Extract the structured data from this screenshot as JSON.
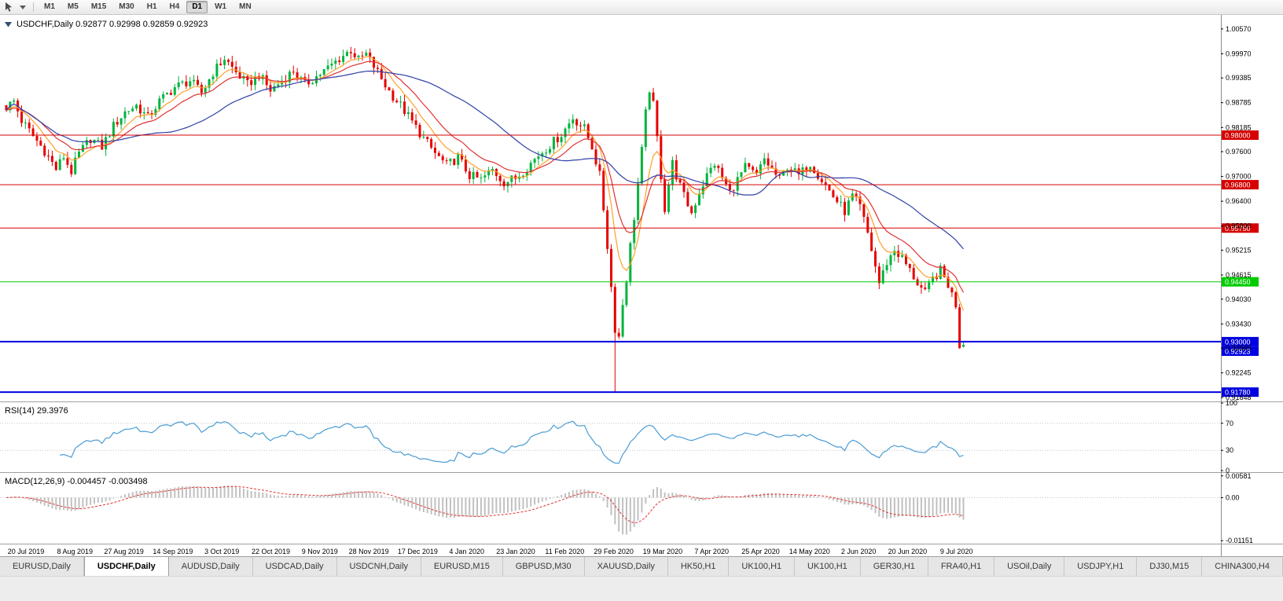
{
  "toolbar": {
    "timeframes": [
      "M1",
      "M5",
      "M15",
      "M30",
      "H1",
      "H4",
      "D1",
      "W1",
      "MN"
    ],
    "active_timeframe": "D1"
  },
  "chart": {
    "header": "USDCHF,Daily 0.92877 0.92998 0.92859 0.92923",
    "symbol": "USDCHF",
    "period": "Daily",
    "open": "0.92877",
    "high": "0.92998",
    "low": "0.92859",
    "close": "0.92923"
  },
  "indicators": {
    "rsi": {
      "label": "RSI(14) 29.3976",
      "levels": [
        "100",
        "70",
        "30",
        "0"
      ],
      "line_color": "#4A9CD4"
    },
    "macd": {
      "label": "MACD(12,26,9) -0.004457 -0.003498",
      "axis_labels": [
        "0.00581",
        "0.00",
        "-0.01151"
      ],
      "bar_color": "#C0C0C0",
      "signal_color": "#E03232"
    }
  },
  "price_axis": {
    "ticks": [
      "1.00570",
      "0.99970",
      "0.99385",
      "0.98785",
      "0.98185",
      "0.97600",
      "0.97000",
      "0.96400",
      "0.95800",
      "0.95215",
      "0.94615",
      "0.94030",
      "0.93430",
      "0.92845",
      "0.92245",
      "0.91648"
    ]
  },
  "levels": [
    {
      "value": 0.98,
      "label": "0.98000",
      "color": "#D40000",
      "width": 1
    },
    {
      "value": 0.968,
      "label": "0.96800",
      "color": "#D40000",
      "width": 1
    },
    {
      "value": 0.9575,
      "label": "0.95750",
      "color": "#D40000",
      "width": 1
    },
    {
      "value": 0.9445,
      "label": "0.94450",
      "color": "#00CC00",
      "width": 1
    },
    {
      "value": 0.93,
      "label": "0.93000",
      "color": "#0000E0",
      "width": 2
    },
    {
      "value": 0.9178,
      "label": "0.91780",
      "color": "#0000E0",
      "width": 2
    }
  ],
  "current_price": {
    "value": 0.92923,
    "label": "0.92923",
    "color": "#0000E0"
  },
  "date_axis": [
    "20 Jul 2019",
    "8 Aug 2019",
    "27 Aug 2019",
    "14 Sep 2019",
    "3 Oct 2019",
    "22 Oct 2019",
    "9 Nov 2019",
    "28 Nov 2019",
    "17 Dec 2019",
    "4 Jan 2020",
    "23 Jan 2020",
    "11 Feb 2020",
    "29 Feb 2020",
    "19 Mar 2020",
    "7 Apr 2020",
    "25 Apr 2020",
    "14 May 2020",
    "2 Jun 2020",
    "20 Jun 2020",
    "9 Jul 2020"
  ],
  "tabs": {
    "active_index": 1,
    "items": [
      "EURUSD,Daily",
      "USDCHF,Daily",
      "AUDUSD,Daily",
      "USDCAD,Daily",
      "USDCNH,Daily",
      "EURUSD,M15",
      "GBPUSD,M30",
      "XAUUSD,Daily",
      "HK50,H1",
      "UK100,H1",
      "UK100,H1",
      "GER30,H1",
      "FRA40,H1",
      "USOil,Daily",
      "USDJPY,H1",
      "DJ30,M15",
      "CHINA300,H4"
    ]
  },
  "chart_data": {
    "type": "candlestick",
    "title": "USDCHF Daily",
    "num_candles": 251,
    "candle_spacing": 4.87,
    "y_range": [
      0.91591,
      1.00872
    ],
    "macd_range": [
      -0.0121,
      0.00639
    ],
    "last_close": 0.92923,
    "last_open": 0.92877,
    "price_keypoints": [
      [
        0,
        0.9868
      ],
      [
        2,
        0.9882
      ],
      [
        4,
        0.9835
      ],
      [
        7,
        0.9798
      ],
      [
        10,
        0.9762
      ],
      [
        13,
        0.9718
      ],
      [
        15,
        0.9748
      ],
      [
        17,
        0.9712
      ],
      [
        19,
        0.9755
      ],
      [
        22,
        0.9792
      ],
      [
        25,
        0.9772
      ],
      [
        28,
        0.9822
      ],
      [
        31,
        0.9856
      ],
      [
        34,
        0.9872
      ],
      [
        37,
        0.9842
      ],
      [
        40,
        0.9882
      ],
      [
        44,
        0.9916
      ],
      [
        48,
        0.9932
      ],
      [
        51,
        0.9902
      ],
      [
        54,
        0.9952
      ],
      [
        57,
        0.9986
      ],
      [
        60,
        0.9952
      ],
      [
        63,
        0.9922
      ],
      [
        66,
        0.9946
      ],
      [
        69,
        0.9908
      ],
      [
        72,
        0.9932
      ],
      [
        75,
        0.9956
      ],
      [
        78,
        0.9922
      ],
      [
        81,
        0.9942
      ],
      [
        84,
        0.9962
      ],
      [
        87,
        0.9986
      ],
      [
        90,
        1.0006
      ],
      [
        92,
        0.9982
      ],
      [
        94,
        0.9996
      ],
      [
        97,
        0.9952
      ],
      [
        100,
        0.9906
      ],
      [
        103,
        0.9872
      ],
      [
        106,
        0.9832
      ],
      [
        109,
        0.9792
      ],
      [
        112,
        0.9756
      ],
      [
        115,
        0.9726
      ],
      [
        118,
        0.9746
      ],
      [
        121,
        0.9702
      ],
      [
        124,
        0.9692
      ],
      [
        127,
        0.9716
      ],
      [
        130,
        0.9686
      ],
      [
        133,
        0.9696
      ],
      [
        136,
        0.9722
      ],
      [
        139,
        0.9752
      ],
      [
        142,
        0.9776
      ],
      [
        145,
        0.9802
      ],
      [
        148,
        0.9842
      ],
      [
        151,
        0.9816
      ],
      [
        153,
        0.9772
      ],
      [
        155,
        0.9702
      ],
      [
        156,
        0.9622
      ],
      [
        157,
        0.9532
      ],
      [
        158,
        0.9432
      ],
      [
        159,
        0.9332
      ],
      [
        160,
        0.9312
      ],
      [
        161,
        0.9392
      ],
      [
        162,
        0.9452
      ],
      [
        163,
        0.9532
      ],
      [
        164,
        0.9602
      ],
      [
        165,
        0.9682
      ],
      [
        166,
        0.9762
      ],
      [
        167,
        0.9852
      ],
      [
        168,
        0.9912
      ],
      [
        169,
        0.9872
      ],
      [
        170,
        0.9792
      ],
      [
        171,
        0.9702
      ],
      [
        172,
        0.9622
      ],
      [
        173,
        0.9682
      ],
      [
        174,
        0.9732
      ],
      [
        175,
        0.9702
      ],
      [
        177,
        0.9652
      ],
      [
        179,
        0.9612
      ],
      [
        181,
        0.9662
      ],
      [
        183,
        0.9702
      ],
      [
        185,
        0.9732
      ],
      [
        187,
        0.9696
      ],
      [
        189,
        0.9662
      ],
      [
        191,
        0.9692
      ],
      [
        193,
        0.9722
      ],
      [
        196,
        0.9702
      ],
      [
        198,
        0.9742
      ],
      [
        200,
        0.9716
      ],
      [
        202,
        0.9692
      ],
      [
        204,
        0.9726
      ],
      [
        207,
        0.9702
      ],
      [
        210,
        0.9732
      ],
      [
        213,
        0.9692
      ],
      [
        216,
        0.9652
      ],
      [
        219,
        0.9616
      ],
      [
        221,
        0.9652
      ],
      [
        223,
        0.9626
      ],
      [
        225,
        0.9562
      ],
      [
        227,
        0.9482
      ],
      [
        228,
        0.9442
      ],
      [
        230,
        0.9492
      ],
      [
        232,
        0.9522
      ],
      [
        234,
        0.9502
      ],
      [
        236,
        0.9472
      ],
      [
        238,
        0.9442
      ],
      [
        240,
        0.9416
      ],
      [
        242,
        0.9452
      ],
      [
        244,
        0.9472
      ],
      [
        246,
        0.9438
      ],
      [
        248,
        0.939
      ],
      [
        249,
        0.9292
      ],
      [
        250,
        0.92923
      ]
    ],
    "wick_overrides": {
      "low": {
        "159": 0.9178,
        "250": 0.92859
      },
      "high": {
        "250": 0.92998
      }
    },
    "moving_averages": [
      {
        "name": "ma-fast",
        "period": 8,
        "method": "ema",
        "color": "#FFA028"
      },
      {
        "name": "ma-mid",
        "period": 16,
        "method": "ema",
        "color": "#E03232"
      },
      {
        "name": "ma-slow",
        "period": 40,
        "method": "sma",
        "color": "#3040A8"
      }
    ],
    "rsi_period": 14,
    "macd_params": {
      "fast": 12,
      "slow": 26,
      "signal": 9
    },
    "colors": {
      "up": "#00B43C",
      "down": "#E60000",
      "grid_dash": "#C4C4C4",
      "separator": "#A0A0A0",
      "axis_line": "#8C8C8C"
    }
  }
}
